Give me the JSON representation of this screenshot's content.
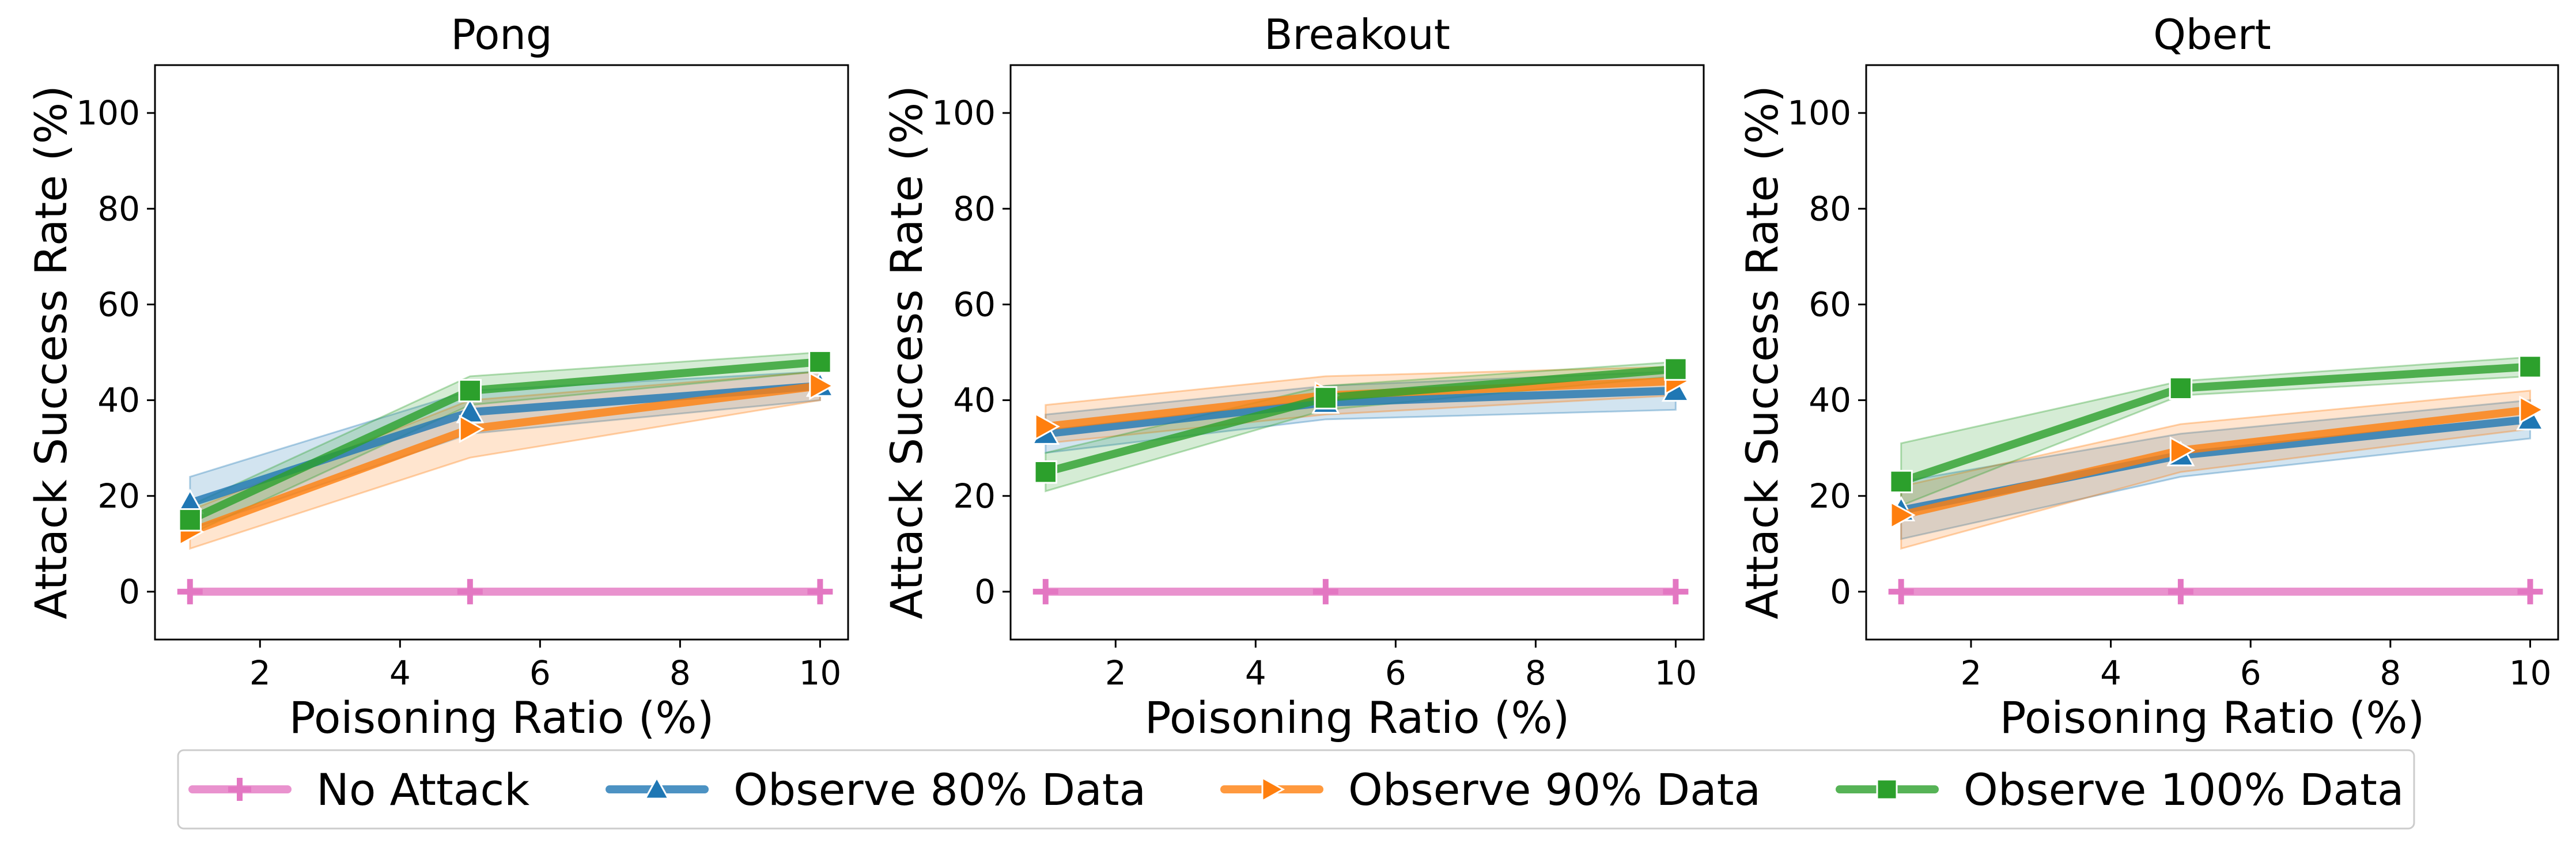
{
  "legend": {
    "entries": [
      "No Attack",
      "Observe 80% Data",
      "Observe 90% Data",
      "Observe 100% Data"
    ],
    "placement": "bottom-center"
  },
  "series_styles": [
    {
      "name": "No Attack",
      "color": "#e377c2",
      "marker": "plus-icon"
    },
    {
      "name": "Observe 80% Data",
      "color": "#1f77b4",
      "marker": "triangle-up-icon"
    },
    {
      "name": "Observe 90% Data",
      "color": "#ff7f0e",
      "marker": "triangle-right-icon"
    },
    {
      "name": "Observe 100% Data",
      "color": "#2ca02c",
      "marker": "square-icon"
    }
  ],
  "chart_data": [
    {
      "type": "line",
      "title": "Pong",
      "xlabel": "Poisoning Ratio (%)",
      "ylabel": "Attack Success Rate (%)",
      "x": [
        1,
        5,
        10
      ],
      "xlim": [
        0.5,
        10.4
      ],
      "ylim": [
        -10,
        110
      ],
      "xticks": [
        2,
        4,
        6,
        8,
        10
      ],
      "yticks": [
        0,
        20,
        40,
        60,
        80,
        100
      ],
      "series": [
        {
          "name": "No Attack",
          "values": [
            0,
            0,
            0
          ],
          "lower": [
            0,
            0,
            0
          ],
          "upper": [
            0,
            0,
            0
          ]
        },
        {
          "name": "Observe 80% Data",
          "values": [
            18.5,
            37.5,
            43
          ],
          "lower": [
            13,
            33,
            40
          ],
          "upper": [
            24,
            42,
            46
          ]
        },
        {
          "name": "Observe 90% Data",
          "values": [
            12.5,
            34,
            43
          ],
          "lower": [
            9,
            28,
            40
          ],
          "upper": [
            17,
            40,
            46
          ]
        },
        {
          "name": "Observe 100% Data",
          "values": [
            15,
            42,
            48
          ],
          "lower": [
            12,
            39,
            46
          ],
          "upper": [
            18,
            45,
            50
          ]
        }
      ]
    },
    {
      "type": "line",
      "title": "Breakout",
      "xlabel": "Poisoning Ratio (%)",
      "ylabel": "Attack Success Rate (%)",
      "x": [
        1,
        5,
        10
      ],
      "xlim": [
        0.5,
        10.4
      ],
      "ylim": [
        -10,
        110
      ],
      "xticks": [
        2,
        4,
        6,
        8,
        10
      ],
      "yticks": [
        0,
        20,
        40,
        60,
        80,
        100
      ],
      "series": [
        {
          "name": "No Attack",
          "values": [
            0,
            0,
            0
          ],
          "lower": [
            0,
            0,
            0
          ],
          "upper": [
            0,
            0,
            0
          ]
        },
        {
          "name": "Observe 80% Data",
          "values": [
            33,
            39.5,
            42
          ],
          "lower": [
            29,
            36,
            38
          ],
          "upper": [
            37,
            43,
            46
          ]
        },
        {
          "name": "Observe 90% Data",
          "values": [
            34.5,
            41,
            44
          ],
          "lower": [
            31,
            37,
            41
          ],
          "upper": [
            39,
            45,
            47
          ]
        },
        {
          "name": "Observe 100% Data",
          "values": [
            25,
            40.5,
            46.5
          ],
          "lower": [
            21,
            38,
            45
          ],
          "upper": [
            29,
            43,
            48
          ]
        }
      ]
    },
    {
      "type": "line",
      "title": "Qbert",
      "xlabel": "Poisoning Ratio (%)",
      "ylabel": "Attack Success Rate (%)",
      "x": [
        1,
        5,
        10
      ],
      "xlim": [
        0.5,
        10.4
      ],
      "ylim": [
        -10,
        110
      ],
      "xticks": [
        2,
        4,
        6,
        8,
        10
      ],
      "yticks": [
        0,
        20,
        40,
        60,
        80,
        100
      ],
      "series": [
        {
          "name": "No Attack",
          "values": [
            0,
            0,
            0
          ],
          "lower": [
            0,
            0,
            0
          ],
          "upper": [
            0,
            0,
            0
          ]
        },
        {
          "name": "Observe 80% Data",
          "values": [
            17,
            28.5,
            36
          ],
          "lower": [
            11,
            24,
            32
          ],
          "upper": [
            23,
            33,
            40
          ]
        },
        {
          "name": "Observe 90% Data",
          "values": [
            16,
            29.5,
            38
          ],
          "lower": [
            9,
            25,
            34
          ],
          "upper": [
            22,
            35,
            42
          ]
        },
        {
          "name": "Observe 100% Data",
          "values": [
            23,
            42.5,
            47
          ],
          "lower": [
            18,
            41,
            45
          ],
          "upper": [
            31,
            44,
            49
          ]
        }
      ]
    }
  ]
}
